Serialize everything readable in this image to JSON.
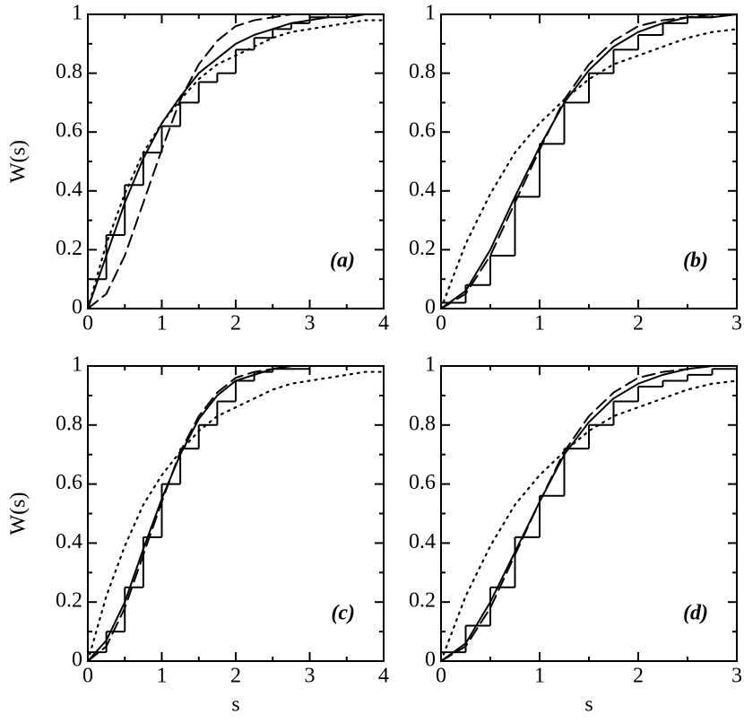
{
  "chart_data": [
    {
      "type": "line",
      "annotation": "(a)",
      "ylabel": "W(s)",
      "x": [
        0,
        0.25,
        0.5,
        0.75,
        1,
        1.25,
        1.5,
        1.75,
        2,
        2.25,
        2.5,
        2.75,
        3,
        3.25,
        3.5,
        3.75,
        4
      ],
      "xlim": [
        0,
        4
      ],
      "ylim": [
        0,
        1
      ],
      "xticks": [
        0,
        1,
        2,
        3,
        4
      ],
      "yticks": [
        0,
        0.2,
        0.4,
        0.6,
        0.8,
        1
      ],
      "series": [
        {
          "color": "#000000",
          "style": "step",
          "values": [
            0.1,
            0.25,
            0.42,
            0.53,
            0.62,
            0.7,
            0.77,
            0.8,
            0.88,
            0.92,
            0.95,
            0.97,
            0.99,
            1,
            1,
            1,
            1
          ]
        },
        {
          "color": "#000000",
          "style": "solid",
          "values": [
            0,
            0.18,
            0.36,
            0.51,
            0.63,
            0.72,
            0.8,
            0.85,
            0.9,
            0.93,
            0.95,
            0.97,
            0.98,
            0.99,
            0.99,
            1,
            1
          ]
        },
        {
          "color": "#000000",
          "style": "dashed",
          "values": [
            0,
            0.05,
            0.18,
            0.36,
            0.54,
            0.71,
            0.83,
            0.91,
            0.96,
            0.98,
            0.99,
            1,
            1,
            1,
            1,
            1,
            1
          ]
        },
        {
          "color": "#000000",
          "style": "dotted",
          "values": [
            0,
            0.22,
            0.39,
            0.53,
            0.63,
            0.71,
            0.78,
            0.83,
            0.86,
            0.89,
            0.92,
            0.94,
            0.95,
            0.96,
            0.97,
            0.98,
            0.98
          ]
        }
      ]
    },
    {
      "type": "line",
      "annotation": "(b)",
      "x": [
        0,
        0.25,
        0.5,
        0.75,
        1,
        1.25,
        1.5,
        1.75,
        2,
        2.25,
        2.5,
        2.75,
        3
      ],
      "xlim": [
        0,
        3
      ],
      "ylim": [
        0,
        1
      ],
      "xticks": [
        0,
        1,
        2,
        3
      ],
      "yticks": [
        0,
        0.2,
        0.4,
        0.6,
        0.8,
        1
      ],
      "series": [
        {
          "color": "#000000",
          "style": "step",
          "values": [
            0.02,
            0.08,
            0.18,
            0.38,
            0.56,
            0.7,
            0.8,
            0.88,
            0.93,
            0.97,
            0.99,
            1,
            1
          ]
        },
        {
          "color": "#000000",
          "style": "solid",
          "values": [
            0,
            0.06,
            0.2,
            0.38,
            0.55,
            0.7,
            0.81,
            0.89,
            0.94,
            0.97,
            0.99,
            0.99,
            1
          ]
        },
        {
          "color": "#000000",
          "style": "dashed",
          "values": [
            0,
            0.05,
            0.18,
            0.36,
            0.54,
            0.71,
            0.83,
            0.91,
            0.96,
            0.98,
            0.99,
            1,
            1
          ]
        },
        {
          "color": "#000000",
          "style": "dotted",
          "values": [
            0,
            0.22,
            0.39,
            0.53,
            0.63,
            0.71,
            0.78,
            0.83,
            0.86,
            0.89,
            0.92,
            0.94,
            0.95
          ]
        }
      ]
    },
    {
      "type": "line",
      "annotation": "(c)",
      "ylabel": "W(s)",
      "xlabel": "s",
      "x": [
        0,
        0.25,
        0.5,
        0.75,
        1,
        1.25,
        1.5,
        1.75,
        2,
        2.25,
        2.5,
        2.75,
        3,
        3.25,
        3.5,
        3.75,
        4
      ],
      "xlim": [
        0,
        4
      ],
      "ylim": [
        0,
        1
      ],
      "xticks": [
        0,
        1,
        2,
        3,
        4
      ],
      "yticks": [
        0,
        0.2,
        0.4,
        0.6,
        0.8,
        1
      ],
      "series": [
        {
          "color": "#000000",
          "style": "step",
          "values": [
            0.03,
            0.1,
            0.25,
            0.42,
            0.6,
            0.72,
            0.8,
            0.88,
            0.95,
            0.98,
            0.99,
            0.99,
            1,
            1,
            1,
            1,
            1
          ]
        },
        {
          "color": "#000000",
          "style": "solid",
          "values": [
            0,
            0.07,
            0.2,
            0.38,
            0.55,
            0.7,
            0.82,
            0.9,
            0.95,
            0.97,
            0.99,
            1,
            1,
            1,
            1,
            1,
            1
          ]
        },
        {
          "color": "#000000",
          "style": "dashed",
          "values": [
            0,
            0.05,
            0.18,
            0.36,
            0.54,
            0.71,
            0.83,
            0.91,
            0.96,
            0.98,
            0.99,
            1,
            1,
            1,
            1,
            1,
            1
          ]
        },
        {
          "color": "#000000",
          "style": "dotted",
          "values": [
            0,
            0.22,
            0.39,
            0.53,
            0.63,
            0.71,
            0.78,
            0.83,
            0.86,
            0.89,
            0.92,
            0.94,
            0.95,
            0.96,
            0.97,
            0.98,
            0.98
          ]
        }
      ]
    },
    {
      "type": "line",
      "annotation": "(d)",
      "xlabel": "s",
      "x": [
        0,
        0.25,
        0.5,
        0.75,
        1,
        1.25,
        1.5,
        1.75,
        2,
        2.25,
        2.5,
        2.75,
        3
      ],
      "xlim": [
        0,
        3
      ],
      "ylim": [
        0,
        1
      ],
      "xticks": [
        0,
        1,
        2,
        3
      ],
      "yticks": [
        0,
        0.2,
        0.4,
        0.6,
        0.8,
        1
      ],
      "series": [
        {
          "color": "#000000",
          "style": "step",
          "values": [
            0.03,
            0.12,
            0.25,
            0.42,
            0.56,
            0.72,
            0.8,
            0.88,
            0.93,
            0.95,
            0.97,
            0.99,
            1
          ]
        },
        {
          "color": "#000000",
          "style": "solid",
          "values": [
            0,
            0.06,
            0.2,
            0.37,
            0.54,
            0.7,
            0.81,
            0.89,
            0.94,
            0.97,
            0.99,
            1,
            1
          ]
        },
        {
          "color": "#000000",
          "style": "dashed",
          "values": [
            0,
            0.05,
            0.18,
            0.36,
            0.54,
            0.71,
            0.83,
            0.91,
            0.96,
            0.98,
            0.99,
            1,
            1
          ]
        },
        {
          "color": "#000000",
          "style": "dotted",
          "values": [
            0,
            0.22,
            0.39,
            0.53,
            0.63,
            0.71,
            0.78,
            0.83,
            0.86,
            0.89,
            0.92,
            0.94,
            0.95
          ]
        }
      ]
    }
  ]
}
